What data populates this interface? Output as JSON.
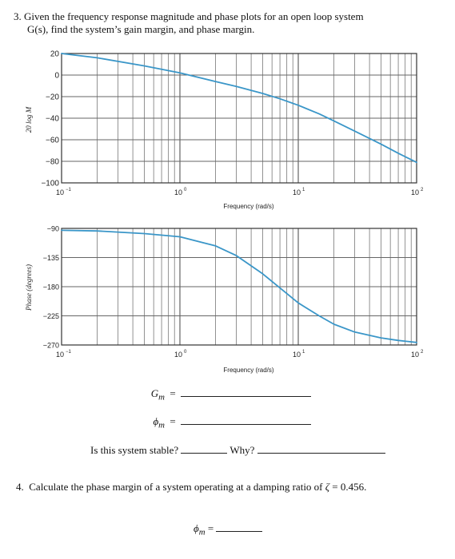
{
  "question3": {
    "number": "3.",
    "text_line1": "Given the frequency response magnitude and phase plots for an open loop system",
    "text_line2": "G(s), find the system’s gain margin, and phase margin."
  },
  "chart_data": [
    {
      "type": "line",
      "ylabel": "20 log M",
      "xlabel": "Frequency (rad/s)",
      "xscale": "log",
      "xlim": [
        0.1,
        100
      ],
      "ylim": [
        -100,
        20
      ],
      "yticks": [
        "20",
        "0",
        "−20",
        "−40",
        "−60",
        "−80",
        "−100"
      ],
      "ytick_values": [
        20,
        0,
        -20,
        -40,
        -60,
        -80,
        -100
      ],
      "xticks": [
        "10",
        "10",
        "10",
        "10"
      ],
      "xtick_exponents": [
        "−1",
        "0",
        "1",
        "2"
      ],
      "grid": true,
      "color": "#3a96c8",
      "series": [
        {
          "x": [
            0.1,
            0.2,
            0.5,
            1,
            2,
            3,
            5,
            7,
            10,
            15,
            20,
            30,
            50,
            70,
            100
          ],
          "y": [
            20,
            16,
            8.5,
            2,
            -6,
            -10.5,
            -17,
            -22,
            -28,
            -36,
            -42.5,
            -52,
            -64,
            -72.5,
            -81
          ]
        }
      ]
    },
    {
      "type": "line",
      "ylabel": "Phase (degrees)",
      "xlabel": "Frequency (rad/s)",
      "xscale": "log",
      "xlim": [
        0.1,
        100
      ],
      "ylim": [
        -270,
        -90
      ],
      "yticks": [
        "−90",
        "−135",
        "−180",
        "−225",
        "−270"
      ],
      "ytick_values": [
        -90,
        -135,
        -180,
        -225,
        -270
      ],
      "xticks": [
        "10",
        "10",
        "10",
        "10"
      ],
      "xtick_exponents": [
        "−1",
        "0",
        "1",
        "2"
      ],
      "grid": true,
      "color": "#3a96c8",
      "series": [
        {
          "x": [
            0.1,
            0.2,
            0.5,
            1,
            2,
            3,
            5,
            7,
            10,
            15,
            20,
            30,
            50,
            70,
            100
          ],
          "y": [
            -93,
            -94,
            -98,
            -103,
            -117,
            -132,
            -160,
            -182,
            -205,
            -225,
            -238,
            -250,
            -259,
            -263,
            -266
          ]
        }
      ]
    }
  ],
  "answers": {
    "gain_margin_symbol": "G",
    "gain_margin_sub": "m",
    "phase_margin_symbol": "ϕ",
    "phase_margin_sub": "m",
    "equals": "=",
    "stable_question": "Is this system stable?",
    "why_label": "Why?"
  },
  "question4": {
    "number": "4.",
    "text": "Calculate the phase margin of a system operating at a damping ratio of",
    "zeta_symbol": "ζ",
    "zeta_eq": "=",
    "zeta_value": "0.456.",
    "answer_symbol": "ϕ",
    "answer_sub": "m",
    "answer_eq": "="
  }
}
